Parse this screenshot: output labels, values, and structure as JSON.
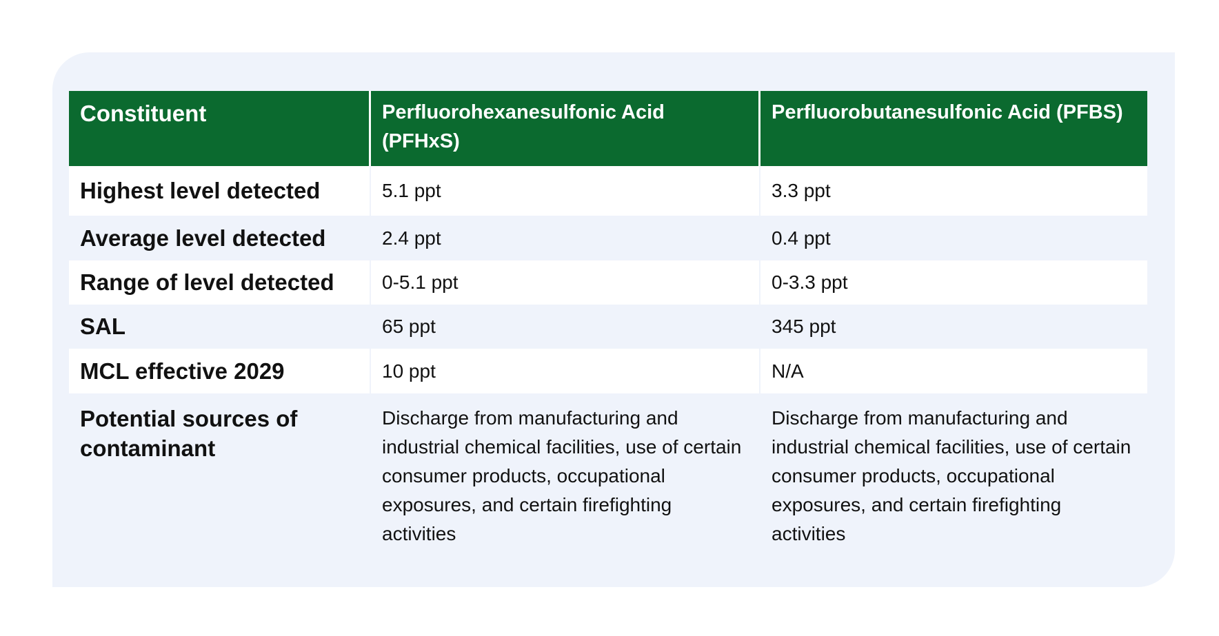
{
  "table": {
    "headers": [
      "Constituent",
      "Perfluorohexanesulfonic Acid (PFHxS)",
      "Perfluorobutanesulfonic Acid (PFBS)"
    ],
    "rows": [
      {
        "label": "Highest level detected",
        "pfhxs": "5.1 ppt",
        "pfbs": "3.3 ppt"
      },
      {
        "label": "Average level detected",
        "pfhxs": "2.4 ppt",
        "pfbs": "0.4 ppt"
      },
      {
        "label": "Range of level detected",
        "pfhxs": "0-5.1 ppt",
        "pfbs": "0-3.3 ppt"
      },
      {
        "label": "SAL",
        "pfhxs": "65 ppt",
        "pfbs": "345 ppt"
      },
      {
        "label": "MCL effective 2029",
        "pfhxs": "10 ppt",
        "pfbs": "N/A"
      },
      {
        "label": "Potential sources of contaminant",
        "pfhxs": "Discharge from manufacturing and industrial chemical facilities, use of certain consumer products, occupational exposures, and certain firefighting activities",
        "pfbs": "Discharge from manufacturing and industrial chemical facilities, use of certain consumer products, occupational exposures, and certain firefighting activities"
      }
    ]
  },
  "colors": {
    "header_bg": "#0b6a2f",
    "card_bg": "#eff3fb",
    "row_bg": "#ffffff"
  }
}
